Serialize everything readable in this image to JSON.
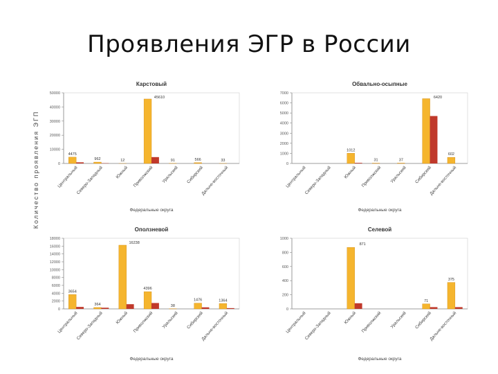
{
  "slide": {
    "title": "Проявления ЭГР в России"
  },
  "figure": {
    "ylabel": "Количество проявления ЭГП"
  },
  "colors": {
    "bar1": "#f5b52e",
    "bar1_edge": "#d08a14",
    "bar2": "#c0392b",
    "axis": "#888888",
    "title": "#333333"
  },
  "chart_data": [
    {
      "type": "bar",
      "title": "Карстовый",
      "xlabel": "Федеральные округа",
      "categories": [
        "Центральный",
        "Северо-Западный",
        "Южный",
        "Приволжский",
        "Уральский",
        "Сибирский",
        "Дальне-восточный"
      ],
      "ylim": [
        0,
        50000
      ],
      "yticks": [
        0,
        10000,
        20000,
        30000,
        40000,
        50000
      ],
      "ytick_labels": [
        "0",
        "10000",
        "20000",
        "30000",
        "40000",
        "50000"
      ],
      "series": [
        {
          "values": [
            4475,
            962,
            12,
            45610,
            91,
            566,
            33
          ]
        },
        {
          "values": [
            800,
            200,
            0,
            4500,
            0,
            0,
            0
          ]
        }
      ],
      "data_labels": [
        "4475",
        "962",
        "12",
        "45610",
        "91",
        "566",
        "33"
      ]
    },
    {
      "type": "bar",
      "title": "Обвально-осыпные",
      "xlabel": "Федеральные округа",
      "categories": [
        "Центральный",
        "Северо-Западный",
        "Южный",
        "Приволжский",
        "Уральский",
        "Сибирский",
        "Дальне-восточный"
      ],
      "ylim": [
        0,
        7000
      ],
      "yticks": [
        0,
        1000,
        2000,
        3000,
        4000,
        5000,
        6000,
        7000
      ],
      "ytick_labels": [
        "0",
        "1000",
        "2000",
        "3000",
        "4000",
        "5000",
        "6000",
        "7000"
      ],
      "series": [
        {
          "values": [
            0,
            0,
            1012,
            31,
            37,
            6420,
            602
          ]
        },
        {
          "values": [
            0,
            0,
            60,
            0,
            0,
            4700,
            0
          ]
        }
      ],
      "data_labels": [
        "",
        "",
        "1012",
        "31",
        "37",
        "6420",
        "602"
      ]
    },
    {
      "type": "bar",
      "title": "Оползневой",
      "xlabel": "Федеральные округа",
      "categories": [
        "Центральный",
        "Северо-Западный",
        "Южный",
        "Приволжский",
        "Уральский",
        "Сибирский",
        "Дальне-восточный"
      ],
      "ylim": [
        0,
        18000
      ],
      "yticks": [
        0,
        2000,
        4000,
        6000,
        8000,
        10000,
        12000,
        14000,
        16000,
        18000
      ],
      "ytick_labels": [
        "0",
        "2000",
        "4000",
        "6000",
        "8000",
        "10000",
        "12000",
        "14000",
        "16000",
        "18000"
      ],
      "series": [
        {
          "values": [
            3654,
            364,
            16238,
            4396,
            38,
            1476,
            1364
          ]
        },
        {
          "values": [
            500,
            300,
            1200,
            1500,
            0,
            400,
            200
          ]
        }
      ],
      "data_labels": [
        "3654",
        "364",
        "16238",
        "4396",
        "38",
        "1476",
        "1364"
      ]
    },
    {
      "type": "bar",
      "title": "Селевой",
      "xlabel": "Федеральные округа",
      "categories": [
        "Центральный",
        "Северо-Западный",
        "Южный",
        "Приволжский",
        "Уральский",
        "Сибирский",
        "Дальне-восточный"
      ],
      "ylim": [
        0,
        1000
      ],
      "yticks": [
        0,
        200,
        400,
        600,
        800,
        1000
      ],
      "ytick_labels": [
        "0",
        "200",
        "400",
        "600",
        "800",
        "1000"
      ],
      "series": [
        {
          "values": [
            0,
            0,
            871,
            0,
            0,
            71,
            375
          ]
        },
        {
          "values": [
            0,
            0,
            80,
            0,
            0,
            25,
            25
          ]
        }
      ],
      "data_labels": [
        "",
        "",
        "871",
        "",
        "",
        "71",
        "375"
      ]
    }
  ]
}
